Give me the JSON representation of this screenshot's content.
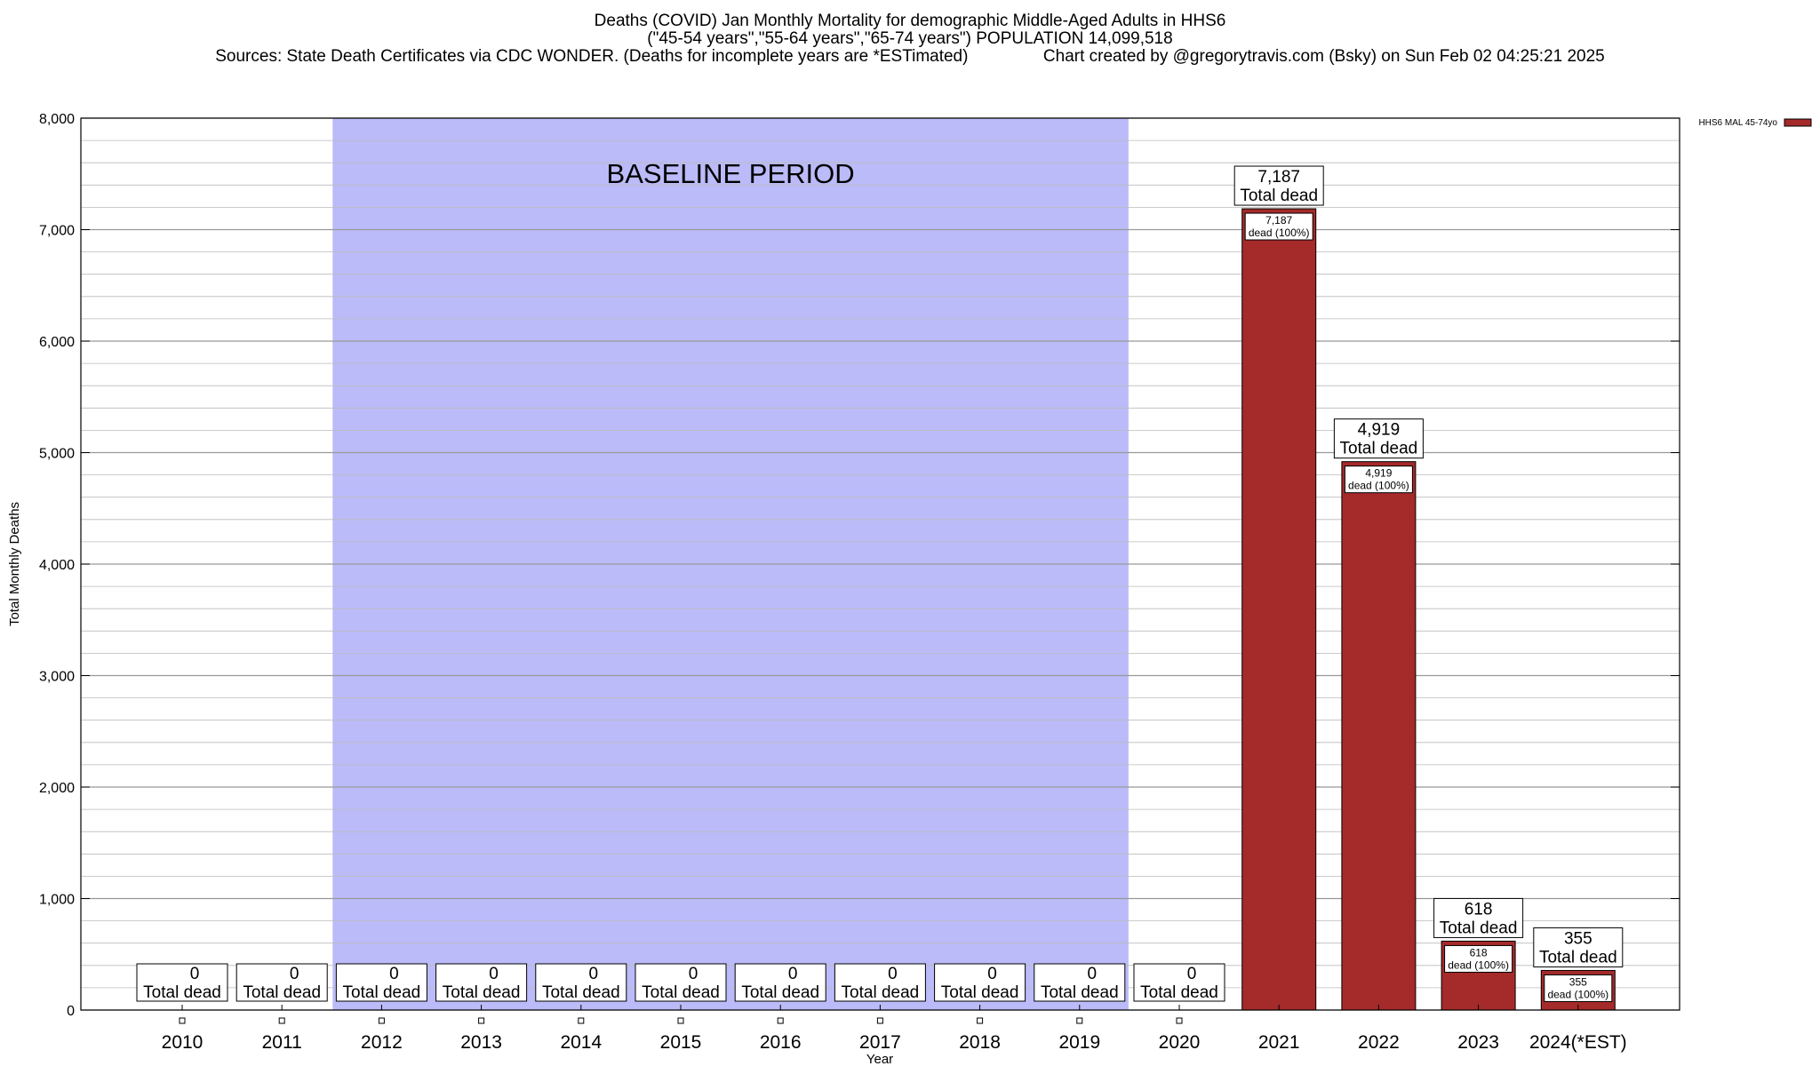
{
  "title_lines": [
    "Deaths (COVID) Jan Monthly Mortality for demographic Middle-Aged Adults in HHS6",
    "(\"45-54 years\",\"55-64 years\",\"65-74 years\") POPULATION 14,099,518",
    "Sources: State Death Certificates via CDC WONDER. (Deaths for incomplete years are *ESTimated)                Chart created by @gregorytravis.com (Bsky) on Sun Feb 02 04:25:21 2025"
  ],
  "chart_data": {
    "type": "bar",
    "categories": [
      "2010",
      "2011",
      "2012",
      "2013",
      "2014",
      "2015",
      "2016",
      "2017",
      "2018",
      "2019",
      "2020",
      "2021",
      "2022",
      "2023",
      "2024(*EST)"
    ],
    "series": [
      {
        "name": "HHS6 MAL 45-74yo",
        "values": [
          0,
          0,
          0,
          0,
          0,
          0,
          0,
          0,
          0,
          0,
          0,
          7187,
          4919,
          618,
          355
        ]
      }
    ],
    "value_labels": [
      "0",
      "0",
      "0",
      "0",
      "0",
      "0",
      "0",
      "0",
      "0",
      "0",
      "0",
      "7,187",
      "4,919",
      "618",
      "355"
    ],
    "total_label_suffix": "Total dead",
    "inner_label_suffix": "dead (100%)",
    "xlabel": "Year",
    "ylabel": "Total Monthly Deaths",
    "ylim": [
      0,
      8000
    ],
    "yticks": [
      0,
      1000,
      2000,
      3000,
      4000,
      5000,
      6000,
      7000,
      8000
    ],
    "ytick_labels": [
      "0",
      "1,000",
      "2,000",
      "3,000",
      "4,000",
      "5,000",
      "6,000",
      "7,000",
      "8,000"
    ],
    "minor_grid_step": 200,
    "grid": true,
    "legend_position": "top-right",
    "baseline": {
      "label": "BASELINE PERIOD",
      "start": "2012",
      "end": "2019",
      "color": "#bbbbf9"
    },
    "bar_color": "#a52a2a"
  }
}
